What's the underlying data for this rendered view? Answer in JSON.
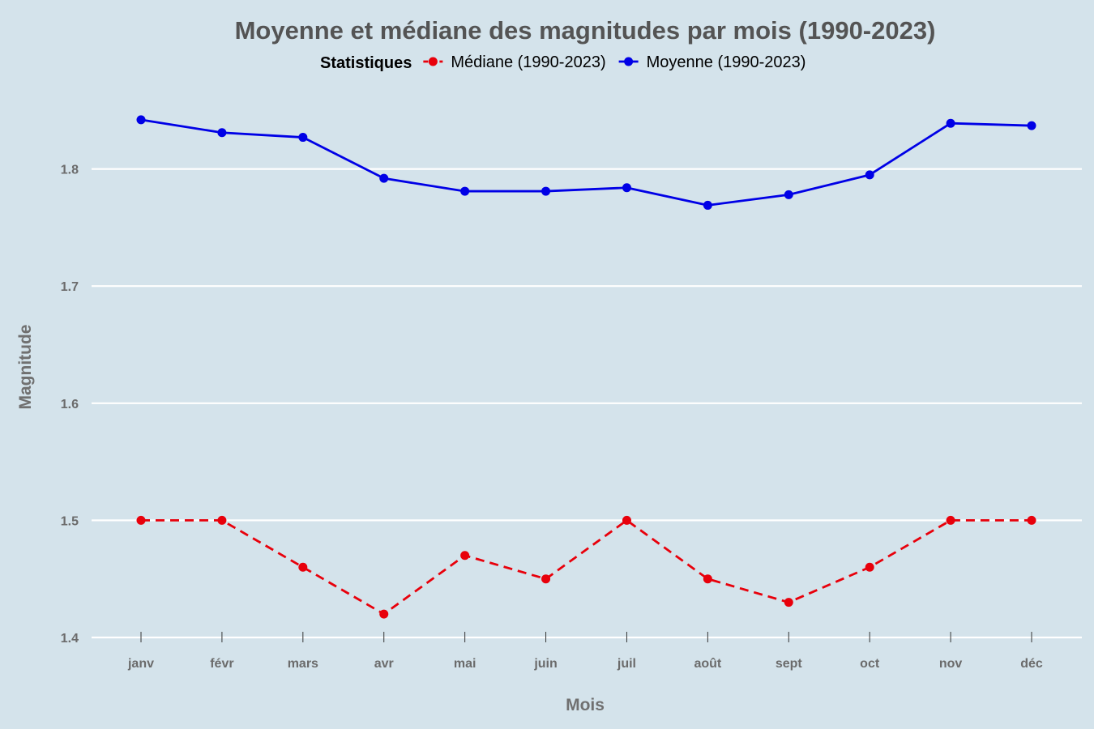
{
  "chart_data": {
    "type": "line",
    "title": "Moyenne et médiane des magnitudes par mois (1990-2023)",
    "xlabel": "Mois",
    "ylabel": "Magnitude",
    "categories": [
      "janv",
      "févr",
      "mars",
      "avr",
      "mai",
      "juin",
      "juil",
      "août",
      "sept",
      "oct",
      "nov",
      "déc"
    ],
    "ylim": [
      1.4,
      1.9
    ],
    "yticks": [
      1.4,
      1.5,
      1.6,
      1.7,
      1.8
    ],
    "ytick_labels": [
      "1.4",
      "1.5",
      "1.6",
      "1.7",
      "1.8"
    ],
    "grid": "horizontal",
    "legend": {
      "title": "Statistiques",
      "placement": "top"
    },
    "series": [
      {
        "name": "Médiane (1990-2023)",
        "color": "#e8000b",
        "line_style": "dashed",
        "values": [
          1.5,
          1.5,
          1.46,
          1.42,
          1.47,
          1.45,
          1.5,
          1.45,
          1.43,
          1.46,
          1.5,
          1.5
        ]
      },
      {
        "name": "Moyenne (1990-2023)",
        "color": "#0000e6",
        "line_style": "solid",
        "values": [
          1.842,
          1.831,
          1.827,
          1.792,
          1.781,
          1.781,
          1.784,
          1.769,
          1.778,
          1.795,
          1.839,
          1.837
        ]
      }
    ]
  }
}
